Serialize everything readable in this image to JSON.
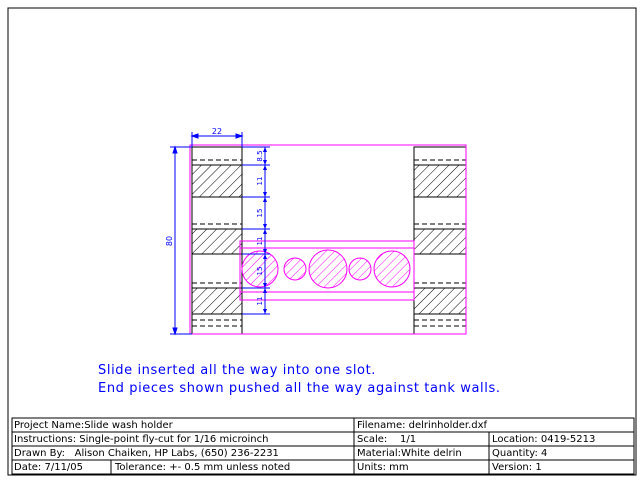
{
  "notes": {
    "line1": "Slide inserted all the way into one slot.",
    "line2": "End pieces shown pushed all the way against tank walls."
  },
  "dimensions": {
    "width_top": "22",
    "overall_height": "80",
    "stack": [
      "8.5",
      "11",
      "15",
      "11",
      "15",
      "11"
    ]
  },
  "title_block": {
    "project_label": "Project Name:",
    "project_value": "Slide wash holder",
    "filename_label": "Filename:",
    "filename_value": "delrinholder.dxf",
    "instructions_label": "Instructions:",
    "instructions_value": "Single-point fly-cut for 1/16 microinch",
    "scale_label": "Scale:",
    "scale_value": "1/1",
    "location_label": "Location:",
    "location_value": "0419-5213",
    "drawnby_label": "Drawn By:",
    "drawnby_value": "Alison Chaiken, HP Labs, (650) 236-2231",
    "material_label": "Material:",
    "material_value": "White delrin",
    "quantity_label": "Quantity:",
    "quantity_value": "4",
    "date_label": "Date:",
    "date_value": "7/11/05",
    "tolerance_label": "Tolerance:",
    "tolerance_value": "+- 0.5 mm unless noted",
    "units_label": "Units:",
    "units_value": "mm",
    "version_label": "Version:",
    "version_value": "1"
  },
  "colors": {
    "outline": "#000000",
    "part": "#ff00ff",
    "dimension": "#0000ff",
    "note": "#0000ff"
  }
}
